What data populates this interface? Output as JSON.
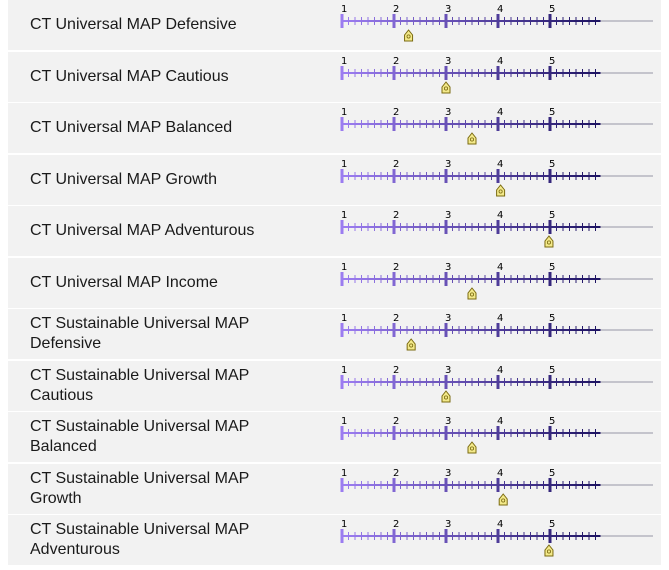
{
  "scale": {
    "min": 1,
    "max": 5,
    "tick_labels": [
      "1",
      "2",
      "3",
      "4",
      "5"
    ],
    "colors": {
      "track_start": "#9b7cf0",
      "track_end": "#1c1260",
      "tail": "#c4c4cc",
      "marker_fill": "#f3e98a",
      "marker_stroke": "#7a6a10"
    }
  },
  "funds": [
    {
      "name": "CT Universal MAP Defensive",
      "risk_level": 2.28
    },
    {
      "name": "CT Universal MAP Cautious",
      "risk_level": 3.0
    },
    {
      "name": "CT Universal MAP Balanced",
      "risk_level": 3.5
    },
    {
      "name": "CT Universal MAP Growth",
      "risk_level": 4.05
    },
    {
      "name": "CT Universal MAP Adventurous",
      "risk_level": 4.98
    },
    {
      "name": "CT Universal MAP Income",
      "risk_level": 3.5
    },
    {
      "name": "CT Sustainable Universal MAP\nDefensive",
      "risk_level": 2.33
    },
    {
      "name": "CT Sustainable Universal MAP\nCautious",
      "risk_level": 3.0
    },
    {
      "name": "CT Sustainable Universal MAP\nBalanced",
      "risk_level": 3.5
    },
    {
      "name": "CT Sustainable Universal MAP\nGrowth",
      "risk_level": 4.1
    },
    {
      "name": "CT Sustainable Universal MAP\nAdventurous",
      "risk_level": 4.98
    }
  ]
}
